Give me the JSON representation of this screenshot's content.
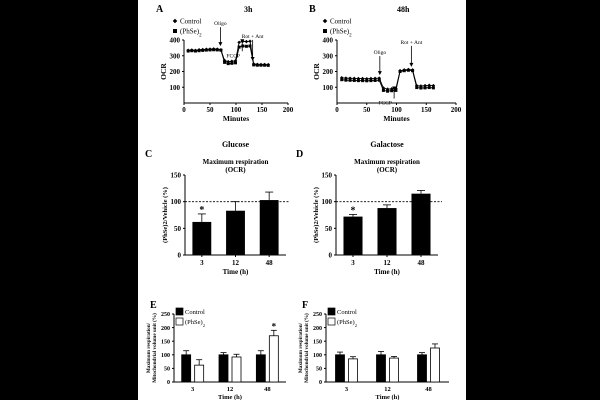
{
  "figure": {
    "legend_control": "Control",
    "legend_phse2": "(PhSe)",
    "legend_phse2_sub": "2"
  },
  "chart_data": [
    {
      "id": "A",
      "panel_label": "A",
      "type": "line",
      "title": "3h",
      "xlabel": "Minutes",
      "ylabel": "OCR",
      "xlim": [
        0,
        200
      ],
      "ylim": [
        0,
        400
      ],
      "xticks": [
        0,
        50,
        100,
        150,
        200
      ],
      "yticks": [
        100,
        200,
        300,
        400
      ],
      "annotations": {
        "oligo": "Oligo",
        "fccp": "FCCP",
        "rotant": "Rot + Ant"
      },
      "annotation_x": {
        "oligo": 70,
        "fccp": 112,
        "rotant": 132
      },
      "x": [
        8,
        15,
        22,
        29,
        36,
        43,
        50,
        57,
        64,
        71,
        78,
        85,
        92,
        99,
        106,
        113,
        120,
        127,
        134,
        141,
        148,
        155,
        162
      ],
      "series": [
        {
          "name": "Control",
          "marker": "diamond",
          "values": [
            335,
            336,
            334,
            338,
            339,
            341,
            342,
            343,
            342,
            338,
            270,
            262,
            265,
            268,
            385,
            392,
            390,
            392,
            248,
            245,
            244,
            244,
            243
          ]
        },
        {
          "name": "(PhSe)2",
          "marker": "square",
          "values": [
            330,
            332,
            330,
            332,
            334,
            336,
            337,
            338,
            337,
            335,
            258,
            250,
            252,
            255,
            355,
            362,
            360,
            362,
            242,
            240,
            240,
            240,
            239
          ]
        }
      ]
    },
    {
      "id": "B",
      "panel_label": "B",
      "type": "line",
      "title": "48h",
      "xlabel": "Minutes",
      "ylabel": "OCR",
      "xlim": [
        0,
        200
      ],
      "ylim": [
        0,
        400
      ],
      "xticks": [
        0,
        50,
        100,
        150,
        200
      ],
      "yticks": [
        100,
        200,
        300,
        400
      ],
      "annotations": {
        "oligo": "Oligo",
        "fccp": "FCCP",
        "rotant": "Rot + Ant"
      },
      "annotation_x": {
        "oligo": 72,
        "fccp": 96,
        "rotant": 125
      },
      "x": [
        8,
        15,
        22,
        29,
        36,
        43,
        50,
        57,
        64,
        71,
        78,
        85,
        92,
        99,
        106,
        113,
        120,
        127,
        134,
        141,
        148,
        155,
        162
      ],
      "series": [
        {
          "name": "Control",
          "marker": "diamond",
          "values": [
            160,
            158,
            157,
            156,
            155,
            155,
            154,
            155,
            156,
            158,
            95,
            88,
            90,
            92,
            205,
            210,
            212,
            210,
            110,
            108,
            110,
            112,
            110
          ]
        },
        {
          "name": "(PhSe)2",
          "marker": "square",
          "values": [
            148,
            145,
            144,
            143,
            142,
            142,
            141,
            142,
            143,
            145,
            80,
            75,
            78,
            80,
            200,
            205,
            208,
            205,
            98,
            95,
            96,
            98,
            96
          ]
        }
      ]
    },
    {
      "id": "C",
      "panel_label": "C",
      "type": "bar",
      "header": "Glucose",
      "title": "Maximum respiration",
      "subtitle": "(OCR)",
      "xlabel": "Time (h)",
      "ylabel": "(PhSe)2/Vehicle (%)",
      "ylim": [
        0,
        150
      ],
      "yticks": [
        0,
        50,
        100,
        150
      ],
      "reference_line": 100,
      "categories": [
        "3",
        "12",
        "48"
      ],
      "values": [
        62,
        83,
        103
      ],
      "errors": [
        15,
        17,
        15
      ],
      "significance": [
        "*",
        "",
        ""
      ]
    },
    {
      "id": "D",
      "panel_label": "D",
      "type": "bar",
      "header": "Galactose",
      "title": "Maximum respiration",
      "subtitle": "(OCR)",
      "xlabel": "Time (h)",
      "ylabel": "(PhSe)2/Vehicle (%)",
      "ylim": [
        0,
        150
      ],
      "yticks": [
        0,
        50,
        100,
        150
      ],
      "reference_line": 100,
      "categories": [
        "3",
        "12",
        "48"
      ],
      "values": [
        72,
        88,
        115
      ],
      "errors": [
        4,
        6,
        6
      ],
      "significance": [
        "*",
        "",
        ""
      ]
    },
    {
      "id": "E",
      "panel_label": "E",
      "type": "bar",
      "xlabel": "Time (h)",
      "ylabel": "Maximum respiration/ Mitochondrial volume unit (%)",
      "ylim": [
        0,
        250
      ],
      "yticks": [
        0,
        50,
        100,
        150,
        200,
        250
      ],
      "categories": [
        "3",
        "12",
        "48"
      ],
      "series": [
        {
          "name": "Control",
          "fill": "#000000",
          "values": [
            100,
            100,
            100
          ],
          "errors": [
            15,
            8,
            15
          ]
        },
        {
          "name": "(PhSe)2",
          "fill": "#ffffff",
          "values": [
            62,
            92,
            170
          ],
          "errors": [
            20,
            10,
            20
          ]
        }
      ],
      "significance": [
        "",
        "",
        "*"
      ]
    },
    {
      "id": "F",
      "panel_label": "F",
      "type": "bar",
      "xlabel": "Time (h)",
      "ylabel": "Maximum respiration/ Mitochondrial volume unit (%)",
      "ylim": [
        0,
        250
      ],
      "yticks": [
        0,
        50,
        100,
        150,
        200,
        250
      ],
      "categories": [
        "3",
        "12",
        "48"
      ],
      "series": [
        {
          "name": "Control",
          "fill": "#000000",
          "values": [
            100,
            100,
            100
          ],
          "errors": [
            10,
            12,
            8
          ]
        },
        {
          "name": "(PhSe)2",
          "fill": "#ffffff",
          "values": [
            85,
            88,
            125
          ],
          "errors": [
            8,
            6,
            15
          ]
        }
      ],
      "significance": [
        "",
        "",
        ""
      ]
    }
  ]
}
